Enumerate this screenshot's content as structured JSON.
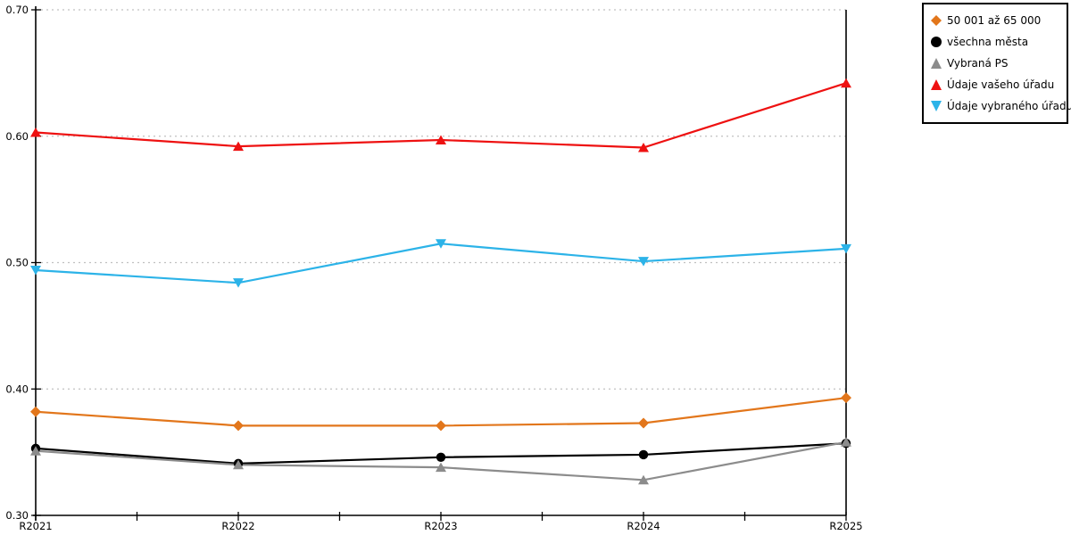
{
  "chart_data": {
    "type": "line",
    "title": "",
    "xlabel": "",
    "ylabel": "",
    "x_categories": [
      "R2021",
      "R2022",
      "R2023",
      "R2024",
      "R2025"
    ],
    "series": [
      {
        "name": "50 001 až 65 000",
        "marker": "diamond",
        "color": "#E2761B",
        "values": [
          0.382,
          0.371,
          0.371,
          0.373,
          0.393
        ]
      },
      {
        "name": "všechna města",
        "marker": "circle",
        "color": "#000000",
        "values": [
          0.353,
          0.341,
          0.346,
          0.348,
          0.357
        ]
      },
      {
        "name": "Vybraná PS",
        "marker": "triangle-up",
        "color": "#8C8C8C",
        "values": [
          0.351,
          0.34,
          0.338,
          0.328,
          0.358
        ]
      },
      {
        "name": "Údaje vašeho úřadu",
        "marker": "triangle-up",
        "color": "#EE1111",
        "values": [
          0.603,
          0.592,
          0.597,
          0.591,
          0.642
        ]
      },
      {
        "name": "Údaje vybraného úřadu",
        "marker": "triangle-down",
        "color": "#2CB3E8",
        "values": [
          0.494,
          0.484,
          0.515,
          0.501,
          0.511
        ]
      }
    ],
    "ylim": [
      0.3,
      0.7
    ],
    "y_ticks": [
      "0.30",
      "0.40",
      "0.50",
      "0.60",
      "0.70"
    ],
    "y_tick_values": [
      0.3,
      0.4,
      0.5,
      0.6,
      0.7
    ],
    "grid": "horizontal-dotted",
    "gridline_color": "#C0C0C0",
    "axis_color": "#000000",
    "legend_position": "top-right"
  }
}
